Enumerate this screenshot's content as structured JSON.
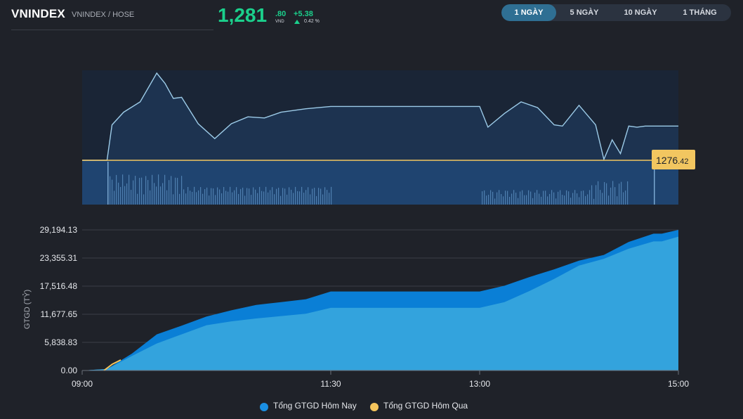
{
  "header": {
    "symbol": "VNINDEX",
    "exchange": "VNINDEX / HOSE",
    "price_int": "1,281",
    "price_dec": ".80",
    "currency": "VND",
    "change": "+5.38",
    "change_pct": "0.42 %",
    "up_color": "#1bd08c"
  },
  "tabs": [
    {
      "label": "1 NGÀY",
      "active": true
    },
    {
      "label": "5 NGÀY",
      "active": false
    },
    {
      "label": "10 NGÀY",
      "active": false
    },
    {
      "label": "1 THÁNG",
      "active": false
    }
  ],
  "chart_data": [
    {
      "type": "line",
      "name": "intraday-index",
      "reference_label_int": "1276",
      "reference_label_dec": ".42",
      "reference": 1276.42,
      "x_range": [
        "09:00",
        "15:00"
      ],
      "x": [
        "09:00",
        "09:15",
        "09:18",
        "09:25",
        "09:35",
        "09:45",
        "09:50",
        "09:55",
        "10:00",
        "10:10",
        "10:20",
        "10:30",
        "10:40",
        "10:50",
        "11:00",
        "11:15",
        "11:30",
        "11:40",
        "12:00",
        "12:30",
        "13:00",
        "13:05",
        "13:15",
        "13:25",
        "13:35",
        "13:45",
        "13:50",
        "14:00",
        "14:10",
        "14:15",
        "14:20",
        "14:25",
        "14:30",
        "14:35",
        "14:40",
        "14:45",
        "15:00"
      ],
      "values": [
        1276.42,
        1276.42,
        1279.5,
        1280.6,
        1281.5,
        1284.0,
        1283.1,
        1281.8,
        1281.9,
        1279.6,
        1278.3,
        1279.6,
        1280.2,
        1280.1,
        1280.6,
        1280.9,
        1281.1,
        1281.1,
        1281.1,
        1281.1,
        1281.1,
        1279.3,
        1280.5,
        1281.5,
        1281.0,
        1279.5,
        1279.4,
        1281.2,
        1279.5,
        1276.5,
        1278.2,
        1277.0,
        1279.4,
        1279.3,
        1279.4,
        1279.4,
        1279.4
      ],
      "volume_note": "volume bars below price line",
      "line_color": "#9ccbe8",
      "ref_color": "#f2c660"
    },
    {
      "type": "area",
      "ylabel": "GTGD (TỶ)",
      "y_ticks": [
        "29,194.13",
        "23,355.31",
        "17,516.48",
        "11,677.65",
        "5,838.83",
        "0.00"
      ],
      "x_ticks": [
        "09:00",
        "11:30",
        "13:00",
        "15:00"
      ],
      "ylim": [
        0,
        29194.13
      ],
      "series": [
        {
          "name": "Tổng GTGD Hôm Nay",
          "color": "#1a8fe3",
          "x": [
            "09:00",
            "09:15",
            "09:30",
            "09:45",
            "10:00",
            "10:15",
            "10:30",
            "10:45",
            "11:00",
            "11:15",
            "11:30",
            "12:00",
            "13:00",
            "13:15",
            "13:30",
            "13:45",
            "14:00",
            "14:15",
            "14:30",
            "14:45",
            "14:50",
            "15:00"
          ],
          "values": [
            0,
            300,
            3500,
            7500,
            9300,
            11200,
            12500,
            13600,
            14200,
            14800,
            16400,
            16400,
            16400,
            17600,
            19400,
            21000,
            22800,
            24000,
            26700,
            28400,
            28400,
            29200
          ]
        },
        {
          "name": "Tổng GTGD Hôm Qua",
          "color": "#f5c55c",
          "x": [
            "09:00",
            "09:15",
            "09:30",
            "09:45",
            "10:00",
            "10:15",
            "10:30",
            "10:45",
            "11:00",
            "11:15",
            "11:30",
            "12:00",
            "13:00",
            "13:15",
            "13:30",
            "13:45",
            "14:00",
            "14:15",
            "14:30",
            "14:45",
            "14:50",
            "15:00"
          ],
          "values": [
            0,
            300,
            3000,
            5600,
            7500,
            9400,
            10200,
            10800,
            11300,
            11800,
            13000,
            13000,
            13000,
            14200,
            16500,
            19000,
            21800,
            23200,
            25300,
            26800,
            26800,
            27800
          ]
        }
      ],
      "legend": "bottom-center"
    }
  ]
}
